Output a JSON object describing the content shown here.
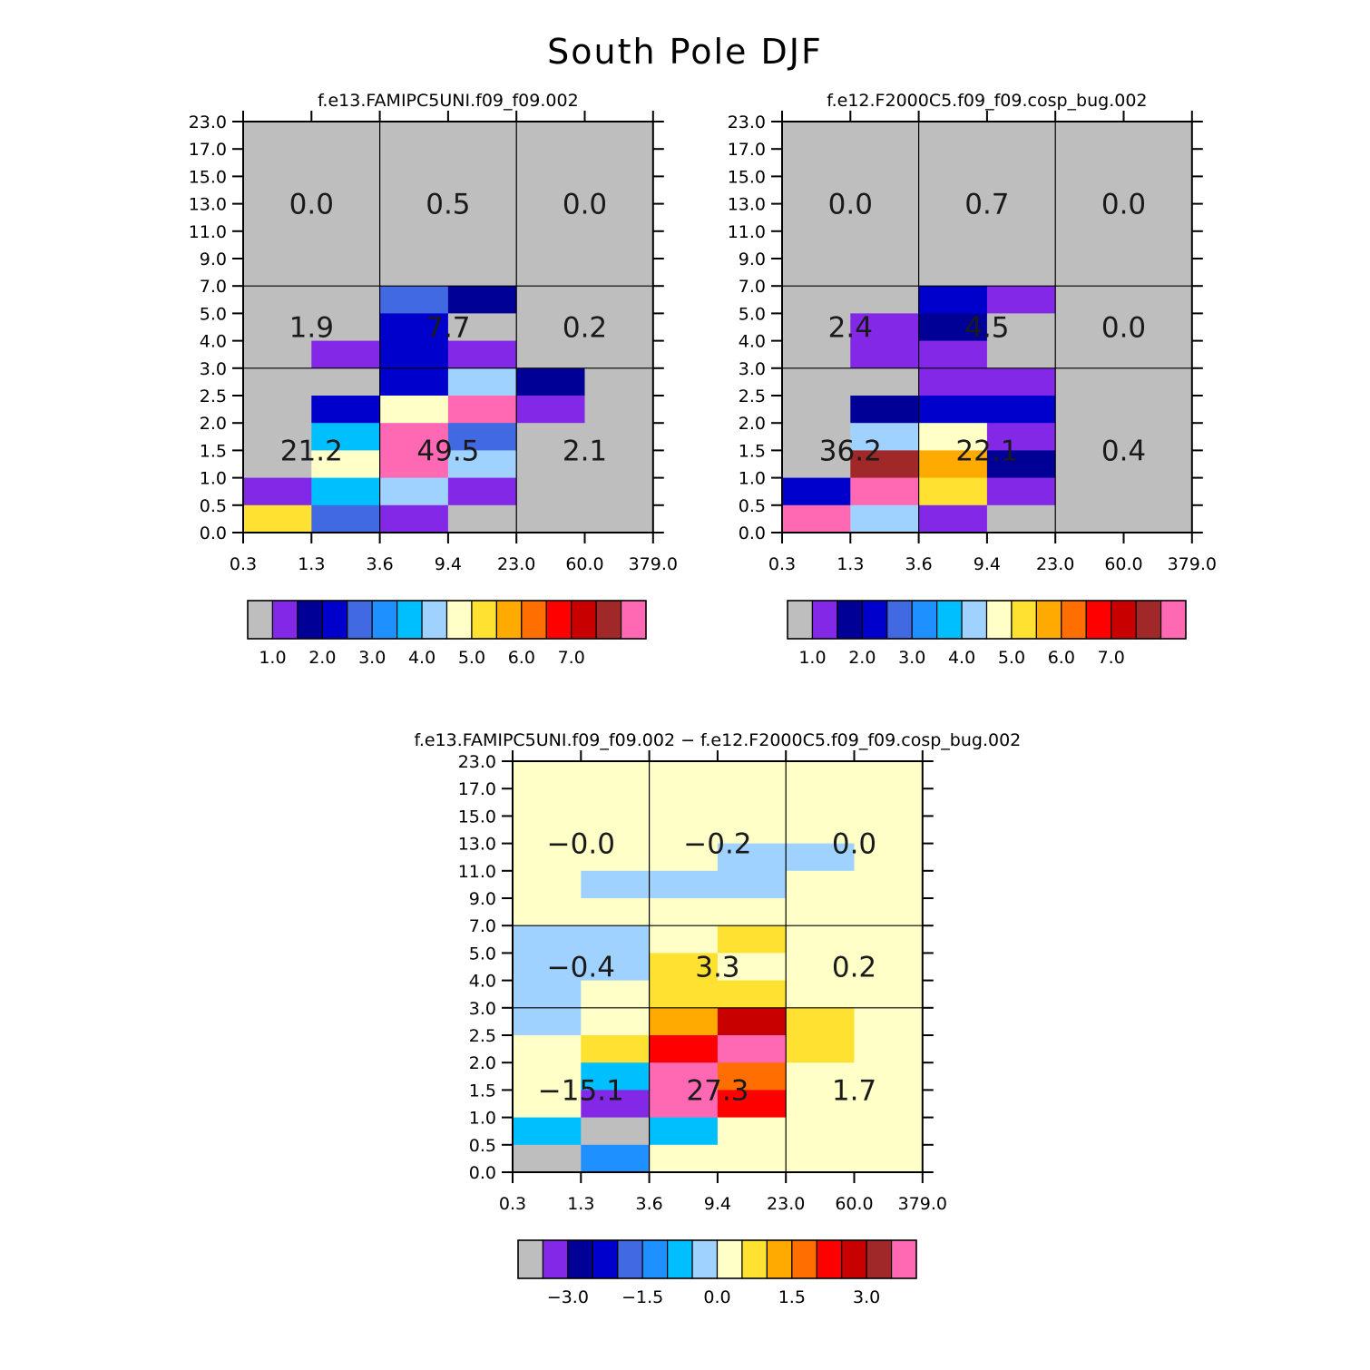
{
  "chart_data": {
    "title": "South Pole DJF",
    "y_ticks": [
      "23.0",
      "17.0",
      "15.0",
      "13.0",
      "11.0",
      "9.0",
      "7.0",
      "5.0",
      "4.0",
      "3.0",
      "2.5",
      "2.0",
      "1.5",
      "1.0",
      "0.5",
      "0.0"
    ],
    "x_ticks": [
      "0.3",
      "1.3",
      "3.6",
      "9.4",
      "23.0",
      "60.0",
      "379.0"
    ],
    "panels": [
      {
        "type": "heatmap",
        "title": "f.e13.FAMIPC5UNI.f09_f09.002",
        "region_values": [
          [
            "0.0",
            "0.5",
            "0.0"
          ],
          [
            "1.9",
            "7.7",
            "0.2"
          ],
          [
            "21.2",
            "49.5",
            "2.1"
          ]
        ],
        "colorbar_labels": [
          "1.0",
          "2.0",
          "3.0",
          "4.0",
          "5.0",
          "6.0",
          "7.0"
        ],
        "cells": [
          [
            0,
            0,
            0,
            0,
            0,
            0
          ],
          [
            0,
            0,
            0,
            0,
            0,
            0
          ],
          [
            0,
            0,
            0,
            0,
            0,
            0
          ],
          [
            0,
            0,
            0,
            0,
            0,
            0
          ],
          [
            0,
            0,
            0,
            0,
            0,
            0
          ],
          [
            0,
            0,
            0,
            0,
            0,
            0
          ],
          [
            0,
            0,
            4,
            2,
            0,
            0
          ],
          [
            0,
            0,
            3,
            0,
            0,
            0
          ],
          [
            0,
            1,
            3,
            1,
            0,
            0
          ],
          [
            0,
            0,
            3,
            7,
            2,
            0
          ],
          [
            0,
            3,
            8,
            15,
            1,
            0
          ],
          [
            0,
            6,
            15,
            4,
            0,
            0
          ],
          [
            0,
            8,
            15,
            7,
            0,
            0
          ],
          [
            1,
            6,
            7,
            1,
            0,
            0
          ],
          [
            9,
            4,
            1,
            0,
            0,
            0
          ]
        ]
      },
      {
        "type": "heatmap",
        "title": "f.e12.F2000C5.f09_f09.cosp_bug.002",
        "region_values": [
          [
            "0.0",
            "0.7",
            "0.0"
          ],
          [
            "2.4",
            "4.5",
            "0.0"
          ],
          [
            "36.2",
            "22.1",
            "0.4"
          ]
        ],
        "colorbar_labels": [
          "1.0",
          "2.0",
          "3.0",
          "4.0",
          "5.0",
          "6.0",
          "7.0"
        ],
        "cells": [
          [
            0,
            0,
            0,
            0,
            0,
            0
          ],
          [
            0,
            0,
            0,
            0,
            0,
            0
          ],
          [
            0,
            0,
            0,
            0,
            0,
            0
          ],
          [
            0,
            0,
            0,
            0,
            0,
            0
          ],
          [
            0,
            0,
            0,
            0,
            0,
            0
          ],
          [
            0,
            0,
            0,
            0,
            0,
            0
          ],
          [
            0,
            0,
            3,
            1,
            0,
            0
          ],
          [
            0,
            1,
            2,
            0,
            0,
            0
          ],
          [
            0,
            1,
            1,
            0,
            0,
            0
          ],
          [
            0,
            0,
            1,
            1,
            0,
            0
          ],
          [
            0,
            2,
            3,
            3,
            0,
            0
          ],
          [
            0,
            7,
            8,
            1,
            0,
            0
          ],
          [
            0,
            14,
            10,
            2,
            0,
            0
          ],
          [
            3,
            15,
            9,
            1,
            0,
            0
          ],
          [
            15,
            7,
            1,
            0,
            0,
            0
          ]
        ]
      },
      {
        "type": "heatmap",
        "title": "f.e13.FAMIPC5UNI.f09_f09.002 − f.e12.F2000C5.f09_f09.cosp_bug.002",
        "region_values": [
          [
            "−0.0",
            "−0.2",
            "0.0"
          ],
          [
            "−0.4",
            "3.3",
            "0.2"
          ],
          [
            "−15.1",
            "27.3",
            "1.7"
          ]
        ],
        "colorbar_labels": [
          "−3.0",
          "−1.5",
          "0.0",
          "1.5",
          "3.0"
        ],
        "cells": [
          [
            8,
            8,
            8,
            8,
            8,
            8
          ],
          [
            8,
            8,
            8,
            8,
            8,
            8
          ],
          [
            8,
            8,
            8,
            8,
            8,
            8
          ],
          [
            8,
            8,
            8,
            7,
            7,
            8
          ],
          [
            8,
            7,
            7,
            7,
            8,
            8
          ],
          [
            8,
            8,
            8,
            8,
            8,
            8
          ],
          [
            7,
            7,
            8,
            9,
            8,
            8
          ],
          [
            7,
            7,
            9,
            8,
            8,
            8
          ],
          [
            7,
            8,
            9,
            9,
            8,
            8
          ],
          [
            7,
            8,
            10,
            13,
            9,
            8
          ],
          [
            8,
            9,
            12,
            15,
            9,
            8
          ],
          [
            8,
            6,
            15,
            11,
            8,
            8
          ],
          [
            8,
            1,
            15,
            12,
            8,
            8
          ],
          [
            6,
            0,
            6,
            8,
            8,
            8
          ],
          [
            0,
            5,
            8,
            8,
            8,
            8
          ]
        ]
      }
    ],
    "palette": [
      "#bebebe",
      "#8228e6",
      "#000096",
      "#0000cd",
      "#4169e1",
      "#1e90ff",
      "#00bfff",
      "#a0d2ff",
      "#ffffc8",
      "#ffe132",
      "#ffaa00",
      "#ff6e00",
      "#ff0000",
      "#c80000",
      "#a02828",
      "#ff69b4"
    ]
  }
}
